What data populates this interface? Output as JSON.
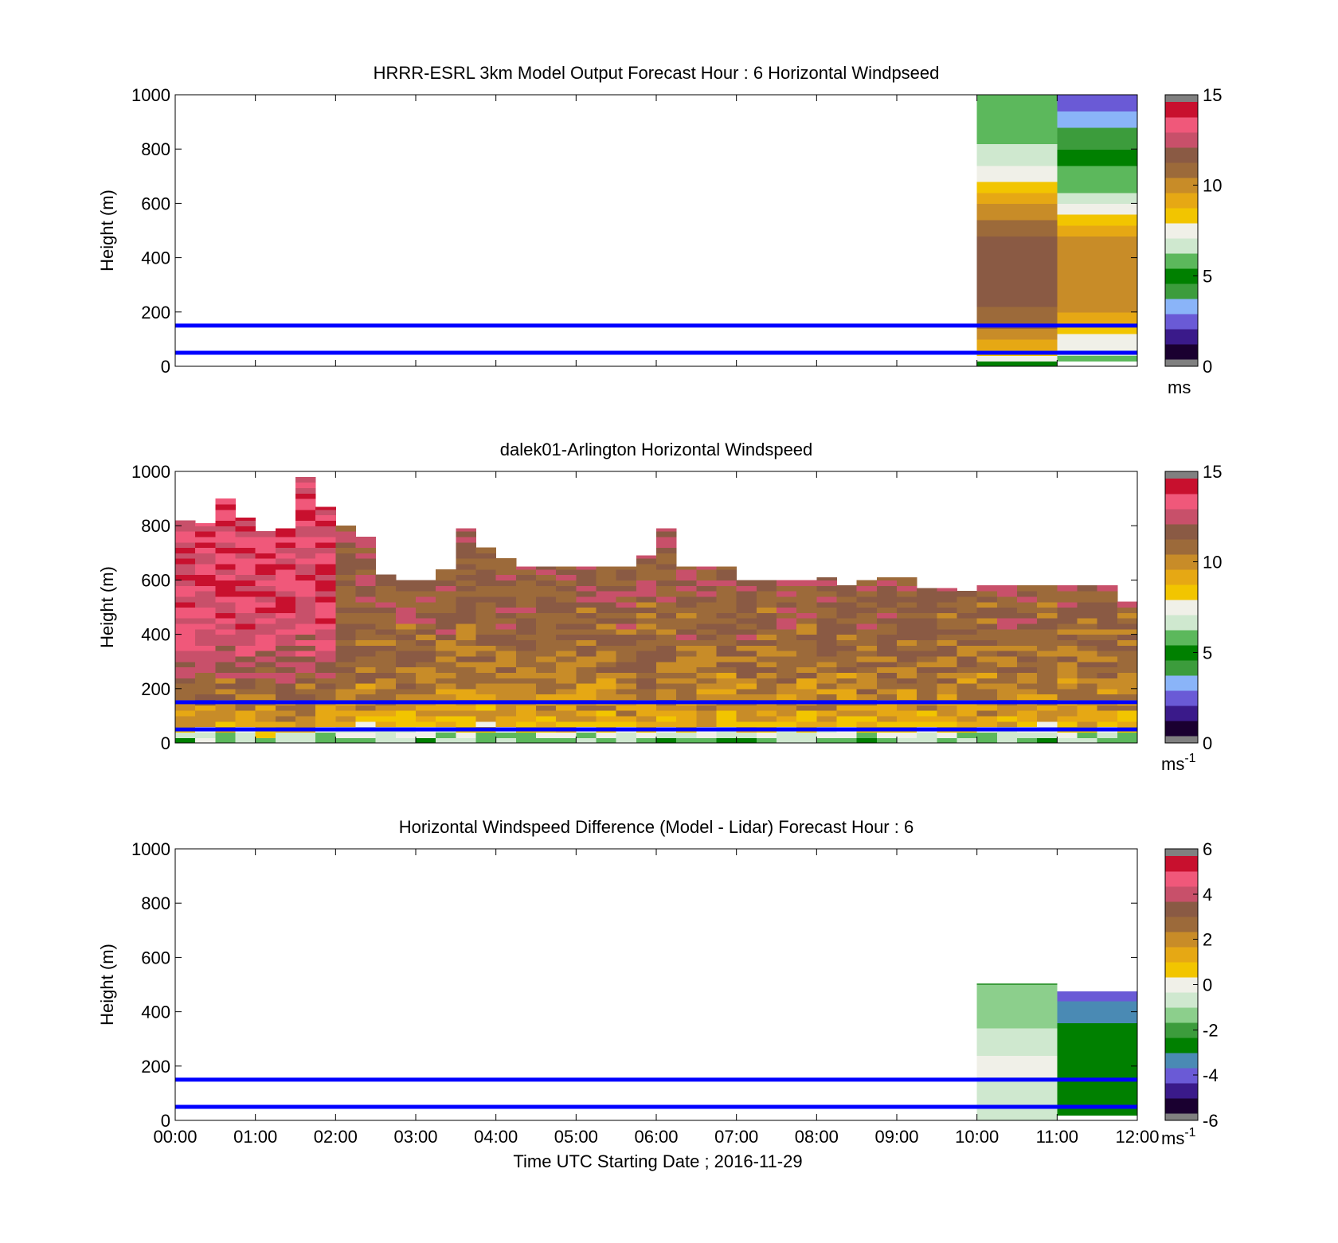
{
  "figure": {
    "xlabel": "Time UTC  Starting Date ; 2016-11-29",
    "height_ticks": [
      "0",
      "200",
      "400",
      "600",
      "800",
      "1000"
    ],
    "time_ticks": [
      "00:00",
      "01:00",
      "02:00",
      "03:00",
      "04:00",
      "05:00",
      "06:00",
      "07:00",
      "08:00",
      "09:00",
      "10:00",
      "11:00",
      "12:00"
    ],
    "reference_lines_m": [
      50,
      150
    ],
    "reference_line_color": "#0000ff"
  },
  "colormaps": {
    "speed": [
      "#1a0030",
      "#3a1a8a",
      "#6a5ad6",
      "#8ab4f8",
      "#3c9c3c",
      "#008000",
      "#5cb85c",
      "#cfe8cf",
      "#f0f0e8",
      "#f2c500",
      "#e6a814",
      "#c88c28",
      "#9c6a3a",
      "#8a5a44",
      "#c8506a",
      "#f0587a",
      "#c8102e"
    ],
    "diff": [
      "#1a0030",
      "#3a1a8a",
      "#6a5ad6",
      "#4a8ab4",
      "#008000",
      "#3c9c3c",
      "#8ccf8c",
      "#cfe8cf",
      "#f0f0e8",
      "#f2c500",
      "#e6a814",
      "#c88c28",
      "#9c6a3a",
      "#8a5a44",
      "#c8506a",
      "#f0587a",
      "#c8102e"
    ],
    "end_color": "#808080"
  },
  "chart_data": [
    {
      "type": "heatmap",
      "title": "HRRR-ESRL 3km Model Output   Forecast Hour : 6 Horizontal Windpseed",
      "xlabel": "",
      "ylabel": "Height (m)",
      "xlim": [
        "00:00",
        "12:00"
      ],
      "ylim": [
        0,
        1000
      ],
      "colorbar": {
        "range": [
          0,
          15
        ],
        "ticks": [
          "0",
          "5",
          "10",
          "15"
        ],
        "unit_base": "ms",
        "unit_exp": "",
        "colormap": "speed"
      },
      "columns": [
        {
          "x0": "10:00",
          "x1": "11:00",
          "z0": 0,
          "profile": [
            [
              0,
              4
            ],
            [
              20,
              6
            ],
            [
              40,
              8.6
            ],
            [
              100,
              9.8
            ],
            [
              160,
              11
            ],
            [
              200,
              11.2
            ],
            [
              260,
              12
            ],
            [
              400,
              12.3
            ],
            [
              500,
              11.3
            ],
            [
              600,
              9.8
            ],
            [
              700,
              7.4
            ],
            [
              800,
              6.3
            ],
            [
              900,
              5.3
            ],
            [
              1000,
              5.3
            ]
          ]
        },
        {
          "x0": "11:00",
          "x1": "12:00",
          "z0": 20,
          "profile": [
            [
              20,
              5.2
            ],
            [
              40,
              5.8
            ],
            [
              80,
              7.5
            ],
            [
              140,
              8.3
            ],
            [
              180,
              9.6
            ],
            [
              280,
              10.3
            ],
            [
              400,
              10.2
            ],
            [
              500,
              9.6
            ],
            [
              560,
              8
            ],
            [
              650,
              6
            ],
            [
              750,
              5.2
            ],
            [
              850,
              3.8
            ],
            [
              950,
              2.6
            ],
            [
              1000,
              2.6
            ]
          ]
        }
      ]
    },
    {
      "type": "heatmap",
      "title": "dalek01-Arlington  Horizontal Windspeed",
      "xlabel": "",
      "ylabel": "Height (m)",
      "xlim": [
        "00:00",
        "12:00"
      ],
      "ylim": [
        0,
        1000
      ],
      "colorbar": {
        "range": [
          0,
          15
        ],
        "ticks": [
          "0",
          "5",
          "10",
          "15"
        ],
        "unit_base": "ms",
        "unit_exp": "-1",
        "colormap": "speed"
      },
      "column_hours": [
        0,
        0.25,
        0.5,
        0.75,
        1,
        1.25,
        1.5,
        1.75,
        2,
        2.25,
        2.5,
        2.75,
        3,
        3.25,
        3.5,
        3.75,
        4,
        4.25,
        4.5,
        4.75,
        5,
        5.25,
        5.5,
        5.75,
        6,
        6.25,
        6.5,
        6.75,
        7,
        7.25,
        7.5,
        7.75,
        8,
        8.25,
        8.5,
        8.75,
        9,
        9.25,
        9.5,
        9.75,
        10,
        10.25,
        10.5,
        10.75,
        11,
        11.25,
        11.5,
        11.75
      ],
      "column_top_m": [
        820,
        810,
        900,
        830,
        780,
        790,
        980,
        870,
        800,
        760,
        620,
        600,
        600,
        640,
        790,
        720,
        680,
        650,
        650,
        650,
        650,
        650,
        650,
        690,
        790,
        650,
        650,
        650,
        600,
        600,
        600,
        600,
        610,
        580,
        600,
        610,
        610,
        570,
        570,
        560,
        580,
        580,
        580,
        580,
        580,
        580,
        580,
        520
      ],
      "profile_lower": [
        [
          0,
          5.5
        ],
        [
          30,
          6.5
        ],
        [
          60,
          8.6
        ],
        [
          120,
          9.8
        ],
        [
          200,
          10.5
        ],
        [
          350,
          11.2
        ],
        [
          500,
          11.6
        ],
        [
          700,
          12
        ]
      ],
      "profile_upper": [
        [
          0,
          6
        ],
        [
          30,
          7
        ],
        [
          60,
          9.2
        ],
        [
          120,
          10.4
        ],
        [
          250,
          11.8
        ],
        [
          400,
          13.3
        ],
        [
          600,
          13.6
        ],
        [
          1000,
          14
        ]
      ]
    },
    {
      "type": "heatmap",
      "title": "Horizontal Windspeed Difference (Model - Lidar) Forecast Hour : 6",
      "xlabel": "Time UTC  Starting Date ; 2016-11-29",
      "ylabel": "Height (m)",
      "xlim": [
        "00:00",
        "12:00"
      ],
      "ylim": [
        0,
        1000
      ],
      "colorbar": {
        "range": [
          -6,
          6
        ],
        "ticks": [
          "-6",
          "-4",
          "-2",
          "0",
          "2",
          "4",
          "6"
        ],
        "unit_base": "ms",
        "unit_exp": "-1",
        "colormap": "diff"
      },
      "columns": [
        {
          "x0": "10:00",
          "x1": "11:00",
          "z0": 0,
          "z1": 505,
          "profile": [
            [
              0,
              -0.8
            ],
            [
              100,
              -0.8
            ],
            [
              180,
              -0.2
            ],
            [
              250,
              -0.4
            ],
            [
              320,
              -1.0
            ],
            [
              420,
              -1.4
            ],
            [
              505,
              -1.8
            ]
          ]
        },
        {
          "x0": "11:00",
          "x1": "12:00",
          "z0": 20,
          "z1": 475,
          "profile": [
            [
              20,
              -2.6
            ],
            [
              300,
              -2.6
            ],
            [
              340,
              -3.0
            ],
            [
              380,
              -3.6
            ],
            [
              420,
              -3.4
            ],
            [
              460,
              -4.2
            ],
            [
              475,
              -4.4
            ]
          ]
        }
      ]
    }
  ]
}
